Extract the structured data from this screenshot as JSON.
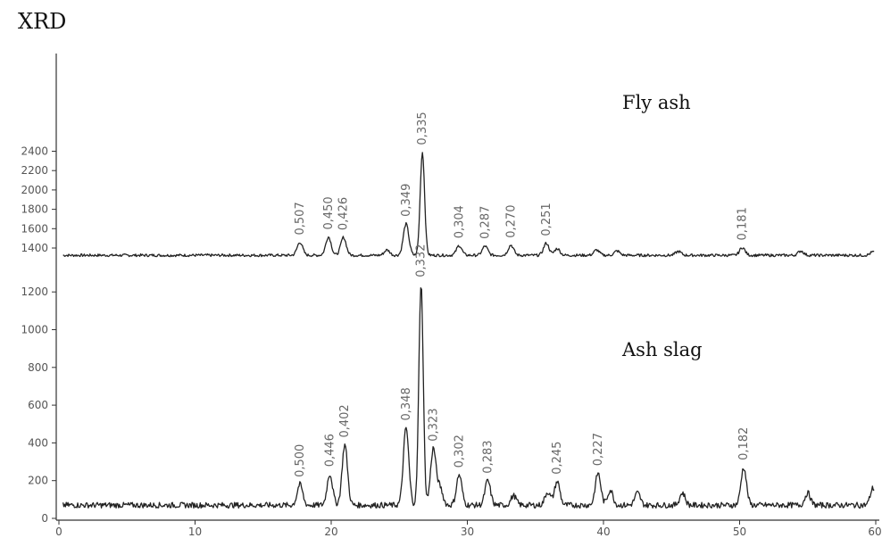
{
  "chart_data": [
    {
      "type": "line",
      "title": "XRD",
      "series_label": "Fly ash",
      "xlim": [
        0,
        60
      ],
      "ylim": [
        1300,
        2400
      ],
      "yticks": [
        1400,
        1600,
        1800,
        2000,
        2200,
        2400
      ],
      "baseline": 1325,
      "peaks": [
        {
          "x": 17.7,
          "y": 1460,
          "label": "0,507"
        },
        {
          "x": 19.8,
          "y": 1515,
          "label": "0,450"
        },
        {
          "x": 20.9,
          "y": 1510,
          "label": "0,426"
        },
        {
          "x": 24.1,
          "y": 1380,
          "label": ""
        },
        {
          "x": 25.5,
          "y": 1650,
          "label": "0,349"
        },
        {
          "x": 26.7,
          "y": 2390,
          "label": "0,335"
        },
        {
          "x": 29.4,
          "y": 1425,
          "label": "0,304"
        },
        {
          "x": 31.3,
          "y": 1420,
          "label": "0,287"
        },
        {
          "x": 33.2,
          "y": 1430,
          "label": "0,270"
        },
        {
          "x": 35.8,
          "y": 1450,
          "label": "0,251"
        },
        {
          "x": 36.6,
          "y": 1395,
          "label": ""
        },
        {
          "x": 39.5,
          "y": 1380,
          "label": ""
        },
        {
          "x": 41.0,
          "y": 1370,
          "label": ""
        },
        {
          "x": 45.5,
          "y": 1365,
          "label": ""
        },
        {
          "x": 50.2,
          "y": 1405,
          "label": "0,181"
        },
        {
          "x": 54.5,
          "y": 1370,
          "label": ""
        },
        {
          "x": 59.8,
          "y": 1360,
          "label": ""
        }
      ]
    },
    {
      "type": "line",
      "series_label": "Ash slag",
      "xlabel": "",
      "ylabel": "",
      "xlim": [
        0,
        60
      ],
      "ylim": [
        0,
        1250
      ],
      "yticks": [
        0,
        200,
        400,
        600,
        800,
        1000,
        1200
      ],
      "xticks": [
        0,
        10,
        20,
        30,
        40,
        50,
        60
      ],
      "xtick_labels": [
        "0",
        "10",
        "20",
        "30",
        "40",
        "50",
        "60"
      ],
      "baseline": 70,
      "peaks": [
        {
          "x": 17.7,
          "y": 180,
          "label": "0,500"
        },
        {
          "x": 19.9,
          "y": 235,
          "label": "0,446"
        },
        {
          "x": 21.0,
          "y": 390,
          "label": "0,402"
        },
        {
          "x": 25.5,
          "y": 480,
          "label": "0,348"
        },
        {
          "x": 26.6,
          "y": 1240,
          "label": "0,332"
        },
        {
          "x": 27.5,
          "y": 370,
          "label": "0,323"
        },
        {
          "x": 28.0,
          "y": 160,
          "label": ""
        },
        {
          "x": 29.4,
          "y": 230,
          "label": "0,302"
        },
        {
          "x": 31.5,
          "y": 200,
          "label": "0,283"
        },
        {
          "x": 33.4,
          "y": 120,
          "label": ""
        },
        {
          "x": 35.9,
          "y": 140,
          "label": ""
        },
        {
          "x": 36.6,
          "y": 195,
          "label": "0,245"
        },
        {
          "x": 39.6,
          "y": 240,
          "label": "0,227"
        },
        {
          "x": 40.5,
          "y": 150,
          "label": ""
        },
        {
          "x": 42.5,
          "y": 135,
          "label": ""
        },
        {
          "x": 45.8,
          "y": 135,
          "label": ""
        },
        {
          "x": 50.3,
          "y": 270,
          "label": "0,182"
        },
        {
          "x": 55.0,
          "y": 135,
          "label": ""
        },
        {
          "x": 59.8,
          "y": 160,
          "label": ""
        }
      ]
    }
  ]
}
